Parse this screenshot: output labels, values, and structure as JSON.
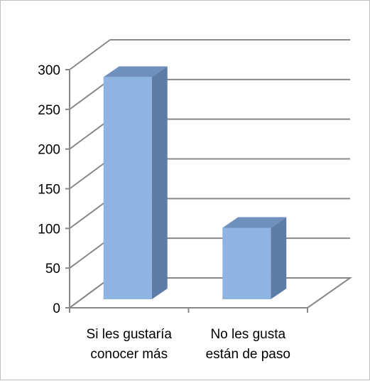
{
  "chart_data": {
    "type": "bar",
    "categories": [
      [
        "Si les gustaría",
        "conocer más"
      ],
      [
        "No les gusta",
        "están de paso"
      ]
    ],
    "values": [
      280,
      90
    ],
    "ylim": [
      0,
      300
    ],
    "yticks": [
      0,
      50,
      100,
      150,
      200,
      250,
      300
    ],
    "grid": true,
    "legend": "none",
    "three_d": true
  },
  "colors": {
    "bar_front": "#8eb4e3",
    "bar_side": "#5d7da8",
    "bar_top": "#6f8fbc",
    "gridline": "#888888",
    "axis": "#888888"
  }
}
